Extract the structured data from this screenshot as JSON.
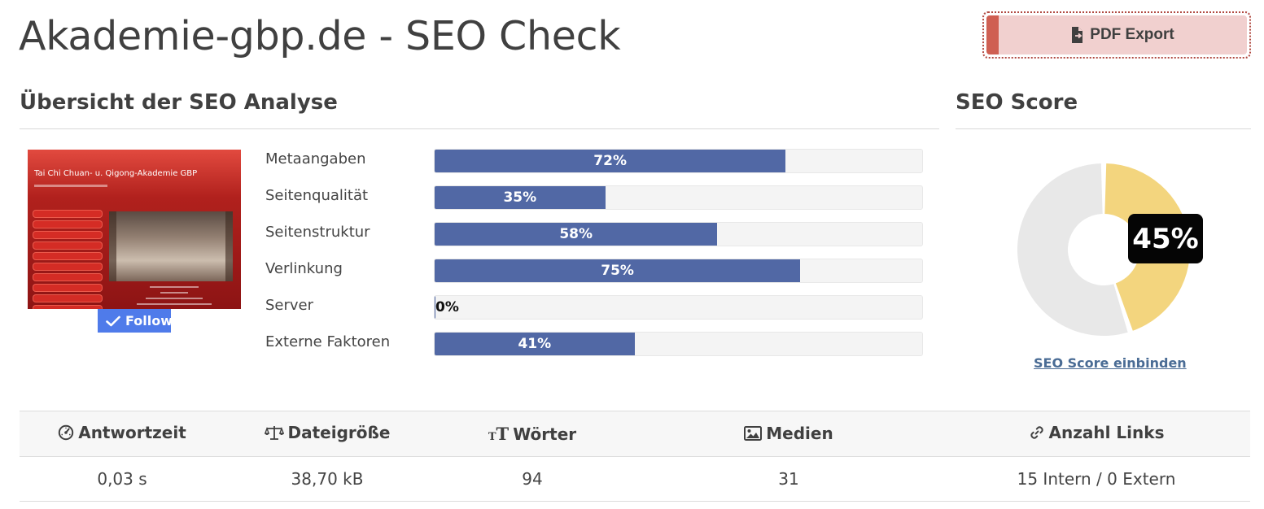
{
  "page": {
    "title": "Akademie-gbp.de - SEO Check"
  },
  "toolbar": {
    "pdf_label": "PDF Export"
  },
  "overview": {
    "title": "Übersicht der SEO Analyse",
    "thumbnail": {
      "site_title": "Tai Chi Chuan- u. Qigong-Akademie GBP"
    },
    "follow_label": "Follow",
    "metrics": [
      {
        "label": "Metaangaben",
        "value": 72,
        "display": "72%"
      },
      {
        "label": "Seitenqualität",
        "value": 35,
        "display": "35%"
      },
      {
        "label": "Seitenstruktur",
        "value": 58,
        "display": "58%"
      },
      {
        "label": "Verlinkung",
        "value": 75,
        "display": "75%"
      },
      {
        "label": "Server",
        "value": 0,
        "display": "0%"
      },
      {
        "label": "Externe Faktoren",
        "value": 41,
        "display": "41%"
      }
    ]
  },
  "score": {
    "title": "SEO Score",
    "value": 45,
    "display": "45%",
    "link_label": "SEO Score einbinden",
    "colors": {
      "filled": "#f3d57e",
      "empty": "#e8e8e8"
    }
  },
  "stats": {
    "columns": [
      {
        "label": "Antwortzeit",
        "icon": "gauge-icon",
        "value": "0,03 s"
      },
      {
        "label": "Dateigröße",
        "icon": "scale-icon",
        "value": "38,70 kB"
      },
      {
        "label": "Wörter",
        "icon": "text-size-icon",
        "value": "94"
      },
      {
        "label": "Medien",
        "icon": "image-icon",
        "value": "31"
      },
      {
        "label": "Anzahl Links",
        "icon": "link-icon",
        "value": "15 Intern / 0 Extern"
      }
    ]
  },
  "colors": {
    "bar": "#5168a5",
    "pdf_button": "#f1d0cf",
    "pdf_accent": "#cf5f52",
    "follow": "#4f7bea"
  }
}
